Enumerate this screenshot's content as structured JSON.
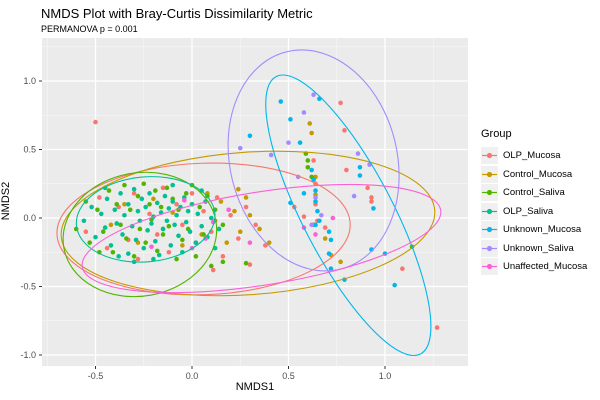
{
  "title": "NMDS Plot with Bray-Curtis Dissimilarity Metric",
  "subtitle": "PERMANOVA p = 0.001",
  "chart_data": {
    "type": "scatter",
    "title": "NMDS Plot with Bray-Curtis Dissimilarity Metric",
    "subtitle": "PERMANOVA p = 0.001",
    "xlabel": "NMDS1",
    "ylabel": "NMDS2",
    "legend_title": "Group",
    "legend_position": "right",
    "xlim": [
      -0.78,
      1.43
    ],
    "ylim": [
      -1.08,
      1.31
    ],
    "x_ticks": [
      -0.5,
      0.0,
      0.5,
      1.0
    ],
    "y_ticks": [
      1.0,
      0.5,
      0.0,
      -0.5,
      -1.0
    ],
    "x_minor_ticks": [
      -0.75,
      -0.25,
      0.25,
      0.75,
      1.25
    ],
    "y_minor_ticks": [
      1.25,
      0.75,
      0.25,
      -0.25,
      -0.75
    ],
    "panel_bg": "#EBEBEB",
    "grid_color": "#FFFFFF",
    "tick_label_color": "#4D4D4D",
    "point_radius": 2.3,
    "series": [
      {
        "name": "OLP_Mucosa",
        "color": "#F8766D",
        "ellipse": {
          "cx": 0.06,
          "cy": -0.08,
          "rx": 0.76,
          "ry": 0.48,
          "rot": -2
        },
        "points": [
          [
            -0.5,
            0.7
          ],
          [
            -0.55,
            -0.1
          ],
          [
            -0.48,
            0.15
          ],
          [
            -0.44,
            -0.22
          ],
          [
            -0.38,
            0.08
          ],
          [
            -0.33,
            -0.16
          ],
          [
            -0.3,
            0.18
          ],
          [
            -0.28,
            -0.3
          ],
          [
            -0.22,
            0.03
          ],
          [
            -0.18,
            -0.12
          ],
          [
            -0.15,
            0.22
          ],
          [
            -0.12,
            -0.25
          ],
          [
            -0.08,
            0.1
          ],
          [
            -0.05,
            -0.05
          ],
          [
            0.0,
            0.18
          ],
          [
            0.02,
            -0.18
          ],
          [
            0.06,
            0.05
          ],
          [
            0.1,
            -0.1
          ],
          [
            0.13,
            0.15
          ],
          [
            0.16,
            -0.28
          ],
          [
            0.11,
            -0.38
          ],
          [
            0.2,
            0.02
          ],
          [
            0.24,
            -0.15
          ],
          [
            0.28,
            0.08
          ],
          [
            0.3,
            -0.34
          ],
          [
            0.33,
            -0.05
          ],
          [
            0.38,
            -0.2
          ],
          [
            0.53,
            0.08
          ],
          [
            0.58,
            0.01
          ],
          [
            0.63,
            0.42
          ],
          [
            0.64,
            0.25
          ],
          [
            0.64,
            0.1
          ],
          [
            0.65,
            -0.02
          ],
          [
            0.69,
            -0.07
          ],
          [
            0.77,
            0.84
          ],
          [
            0.79,
            0.64
          ],
          [
            0.8,
            0.35
          ],
          [
            0.91,
            0.22
          ],
          [
            0.93,
            0.15
          ],
          [
            0.93,
            0.12
          ],
          [
            1.09,
            -0.37
          ],
          [
            1.27,
            -0.8
          ]
        ]
      },
      {
        "name": "Control_Mucosa",
        "color": "#C49A00",
        "ellipse": {
          "cx": 0.29,
          "cy": -0.04,
          "rx": 0.97,
          "ry": 0.52,
          "rot": -4
        },
        "points": [
          [
            -0.42,
            -0.05
          ],
          [
            -0.35,
            0.1
          ],
          [
            -0.28,
            -0.18
          ],
          [
            -0.2,
            0.14
          ],
          [
            -0.15,
            -0.08
          ],
          [
            -0.1,
            0.04
          ],
          [
            -0.05,
            -0.2
          ],
          [
            0.0,
            0.1
          ],
          [
            0.05,
            -0.12
          ],
          [
            0.08,
            0.18
          ],
          [
            0.12,
            -0.02
          ],
          [
            0.15,
            0.12
          ],
          [
            0.18,
            -0.18
          ],
          [
            0.22,
            0.05
          ],
          [
            0.24,
            0.21
          ],
          [
            0.25,
            -0.1
          ],
          [
            0.28,
            0.15
          ],
          [
            0.3,
            0.02
          ],
          [
            0.35,
            -0.08
          ],
          [
            0.4,
            -0.18
          ],
          [
            0.61,
            0.69
          ],
          [
            0.62,
            0.62
          ],
          [
            0.64,
            0.3
          ],
          [
            0.64,
            0.17
          ],
          [
            0.69,
            -0.15
          ],
          [
            0.72,
            -0.27
          ],
          [
            0.77,
            -0.32
          ],
          [
            0.63,
            -0.05
          ]
        ]
      },
      {
        "name": "Control_Saliva",
        "color": "#53B400",
        "ellipse": {
          "cx": -0.27,
          "cy": -0.12,
          "rx": 0.4,
          "ry": 0.45,
          "rot": -10
        },
        "points": [
          [
            -0.6,
            -0.08
          ],
          [
            -0.55,
            0.12
          ],
          [
            -0.53,
            -0.18
          ],
          [
            -0.49,
            0.06
          ],
          [
            -0.46,
            -0.1
          ],
          [
            -0.43,
            0.2
          ],
          [
            -0.41,
            -0.25
          ],
          [
            -0.39,
            0.1
          ],
          [
            -0.37,
            -0.05
          ],
          [
            -0.35,
            0.24
          ],
          [
            -0.34,
            -0.15
          ],
          [
            -0.32,
            0.06
          ],
          [
            -0.3,
            -0.28
          ],
          [
            -0.28,
            0.16
          ],
          [
            -0.27,
            -0.08
          ],
          [
            -0.25,
            0.25
          ],
          [
            -0.24,
            -0.18
          ],
          [
            -0.22,
            0.1
          ],
          [
            -0.21,
            -0.01
          ],
          [
            -0.19,
            0.2
          ],
          [
            -0.18,
            -0.24
          ],
          [
            -0.16,
            0.08
          ],
          [
            -0.15,
            -0.12
          ],
          [
            -0.13,
            0.22
          ],
          [
            -0.12,
            -0.06
          ],
          [
            -0.1,
            0.14
          ],
          [
            -0.08,
            -0.3
          ],
          [
            -0.07,
            0.06
          ],
          [
            -0.05,
            -0.16
          ],
          [
            -0.03,
            0.18
          ],
          [
            -0.02,
            -0.08
          ],
          [
            0.0,
            0.24
          ],
          [
            0.02,
            -0.28
          ],
          [
            0.04,
            0.08
          ],
          [
            0.06,
            -0.12
          ],
          [
            0.08,
            0.16
          ],
          [
            0.1,
            -0.35
          ],
          [
            0.12,
            0.06
          ],
          [
            0.16,
            -0.32
          ],
          [
            0.28,
            -0.33
          ],
          [
            0.16,
            -0.05
          ],
          [
            -0.48,
            -0.25
          ],
          [
            0.59,
            0.47
          ],
          [
            0.6,
            0.42
          ],
          [
            0.6,
            0.37
          ],
          [
            0.62,
            0.3
          ],
          [
            1.14,
            -0.21
          ]
        ]
      },
      {
        "name": "OLP_Saliva",
        "color": "#00C094",
        "ellipse": {
          "cx": -0.24,
          "cy": -0.01,
          "rx": 0.36,
          "ry": 0.31,
          "rot": -5
        },
        "points": [
          [
            -0.56,
            -0.02
          ],
          [
            -0.52,
            0.08
          ],
          [
            -0.5,
            -0.14
          ],
          [
            -0.47,
            0.03
          ],
          [
            -0.45,
            -0.07
          ],
          [
            -0.44,
            0.14
          ],
          [
            -0.42,
            -0.2
          ],
          [
            -0.4,
            0.06
          ],
          [
            -0.39,
            -0.04
          ],
          [
            -0.37,
            0.18
          ],
          [
            -0.36,
            -0.12
          ],
          [
            -0.35,
            0.02
          ],
          [
            -0.33,
            -0.26
          ],
          [
            -0.33,
            0.1
          ],
          [
            -0.31,
            -0.06
          ],
          [
            -0.3,
            0.21
          ],
          [
            -0.29,
            -0.16
          ],
          [
            -0.28,
            0.05
          ],
          [
            -0.27,
            -0.02
          ],
          [
            -0.26,
            0.14
          ],
          [
            -0.25,
            -0.22
          ],
          [
            -0.24,
            0.08
          ],
          [
            -0.23,
            -0.09
          ],
          [
            -0.22,
            0.18
          ],
          [
            -0.21,
            -0.04
          ],
          [
            -0.2,
            0.01
          ],
          [
            -0.19,
            -0.17
          ],
          [
            -0.18,
            0.11
          ],
          [
            -0.17,
            -0.27
          ],
          [
            -0.16,
            0.04
          ],
          [
            -0.15,
            -0.08
          ],
          [
            -0.14,
            0.16
          ],
          [
            -0.13,
            -0.02
          ],
          [
            -0.12,
            0.07
          ],
          [
            -0.11,
            -0.2
          ],
          [
            -0.1,
            0.12
          ],
          [
            -0.09,
            -0.05
          ],
          [
            -0.08,
            0.02
          ],
          [
            -0.07,
            -0.13
          ],
          [
            -0.06,
            0.08
          ],
          [
            -0.05,
            -0.25
          ],
          [
            -0.04,
            0.15
          ],
          [
            -0.03,
            -0.03
          ],
          [
            -0.02,
            0.05
          ],
          [
            -0.01,
            -0.1
          ],
          [
            0.0,
            0.1
          ],
          [
            0.02,
            -0.18
          ],
          [
            0.03,
            0.03
          ],
          [
            0.05,
            -0.06
          ],
          [
            0.07,
            0.12
          ],
          [
            0.08,
            -0.14
          ],
          [
            0.1,
            0.0
          ],
          [
            0.12,
            -0.22
          ],
          [
            0.05,
            0.2
          ],
          [
            -0.38,
            -0.28
          ],
          [
            -0.2,
            -0.3
          ],
          [
            -0.45,
            0.22
          ],
          [
            -0.3,
            -0.32
          ],
          [
            0.14,
            -0.08
          ],
          [
            -0.1,
            0.24
          ]
        ]
      },
      {
        "name": "Unknown_Mucosa",
        "color": "#00B6EB",
        "ellipse": {
          "cx": 0.81,
          "cy": 0.02,
          "rx": 0.81,
          "ry": 0.33,
          "rot": 62.5
        },
        "points": [
          [
            0.3,
            0.6
          ],
          [
            0.46,
            0.85
          ],
          [
            0.51,
            0.72
          ],
          [
            0.56,
            0.55
          ],
          [
            0.51,
            0.11
          ],
          [
            0.62,
            0.35
          ],
          [
            0.63,
            0.28
          ],
          [
            0.64,
            0.2
          ],
          [
            0.64,
            0.12
          ],
          [
            0.65,
            0.05
          ],
          [
            0.66,
            -0.02
          ],
          [
            0.66,
            0.87
          ],
          [
            0.71,
            -0.1
          ],
          [
            0.72,
            -0.16
          ],
          [
            0.71,
            -0.26
          ],
          [
            0.72,
            -0.37
          ],
          [
            0.79,
            -0.45
          ],
          [
            0.87,
            0.37
          ],
          [
            0.87,
            0.31
          ],
          [
            0.93,
            -0.23
          ],
          [
            0.94,
            0.07
          ],
          [
            1.0,
            -0.26
          ],
          [
            1.05,
            -0.49
          ],
          [
            0.64,
            -0.05
          ],
          [
            0.58,
            0.18
          ]
        ]
      },
      {
        "name": "Unknown_Saliva",
        "color": "#A58AFF",
        "ellipse": {
          "cx": 0.63,
          "cy": 0.42,
          "rx": 0.58,
          "ry": 0.61,
          "rot": 76
        },
        "points": [
          [
            0.41,
            0.46
          ],
          [
            0.5,
            0.55
          ],
          [
            0.58,
            0.77
          ],
          [
            0.63,
            0.9
          ],
          [
            0.64,
            0.15
          ],
          [
            0.67,
            0.02
          ],
          [
            0.84,
            0.16
          ],
          [
            0.86,
            0.47
          ],
          [
            0.92,
            0.39
          ],
          [
            0.62,
            -0.05
          ],
          [
            0.55,
            0.3
          ],
          [
            0.25,
            0.51
          ]
        ]
      },
      {
        "name": "Unaffected_Mucosa",
        "color": "#FB61D7",
        "ellipse": {
          "cx": 0.36,
          "cy": -0.15,
          "rx": 0.94,
          "ry": 0.34,
          "rot": -9
        },
        "points": [
          [
            -0.21,
            -0.21
          ],
          [
            0.0,
            -0.22
          ],
          [
            0.19,
            0.06
          ],
          [
            0.11,
            -0.03
          ],
          [
            0.3,
            -0.18
          ],
          [
            0.58,
            -0.07
          ],
          [
            0.73,
            0.0
          ],
          [
            0.64,
            -0.12
          ],
          [
            -0.04,
            0.13
          ],
          [
            0.07,
            -0.15
          ]
        ]
      }
    ]
  }
}
